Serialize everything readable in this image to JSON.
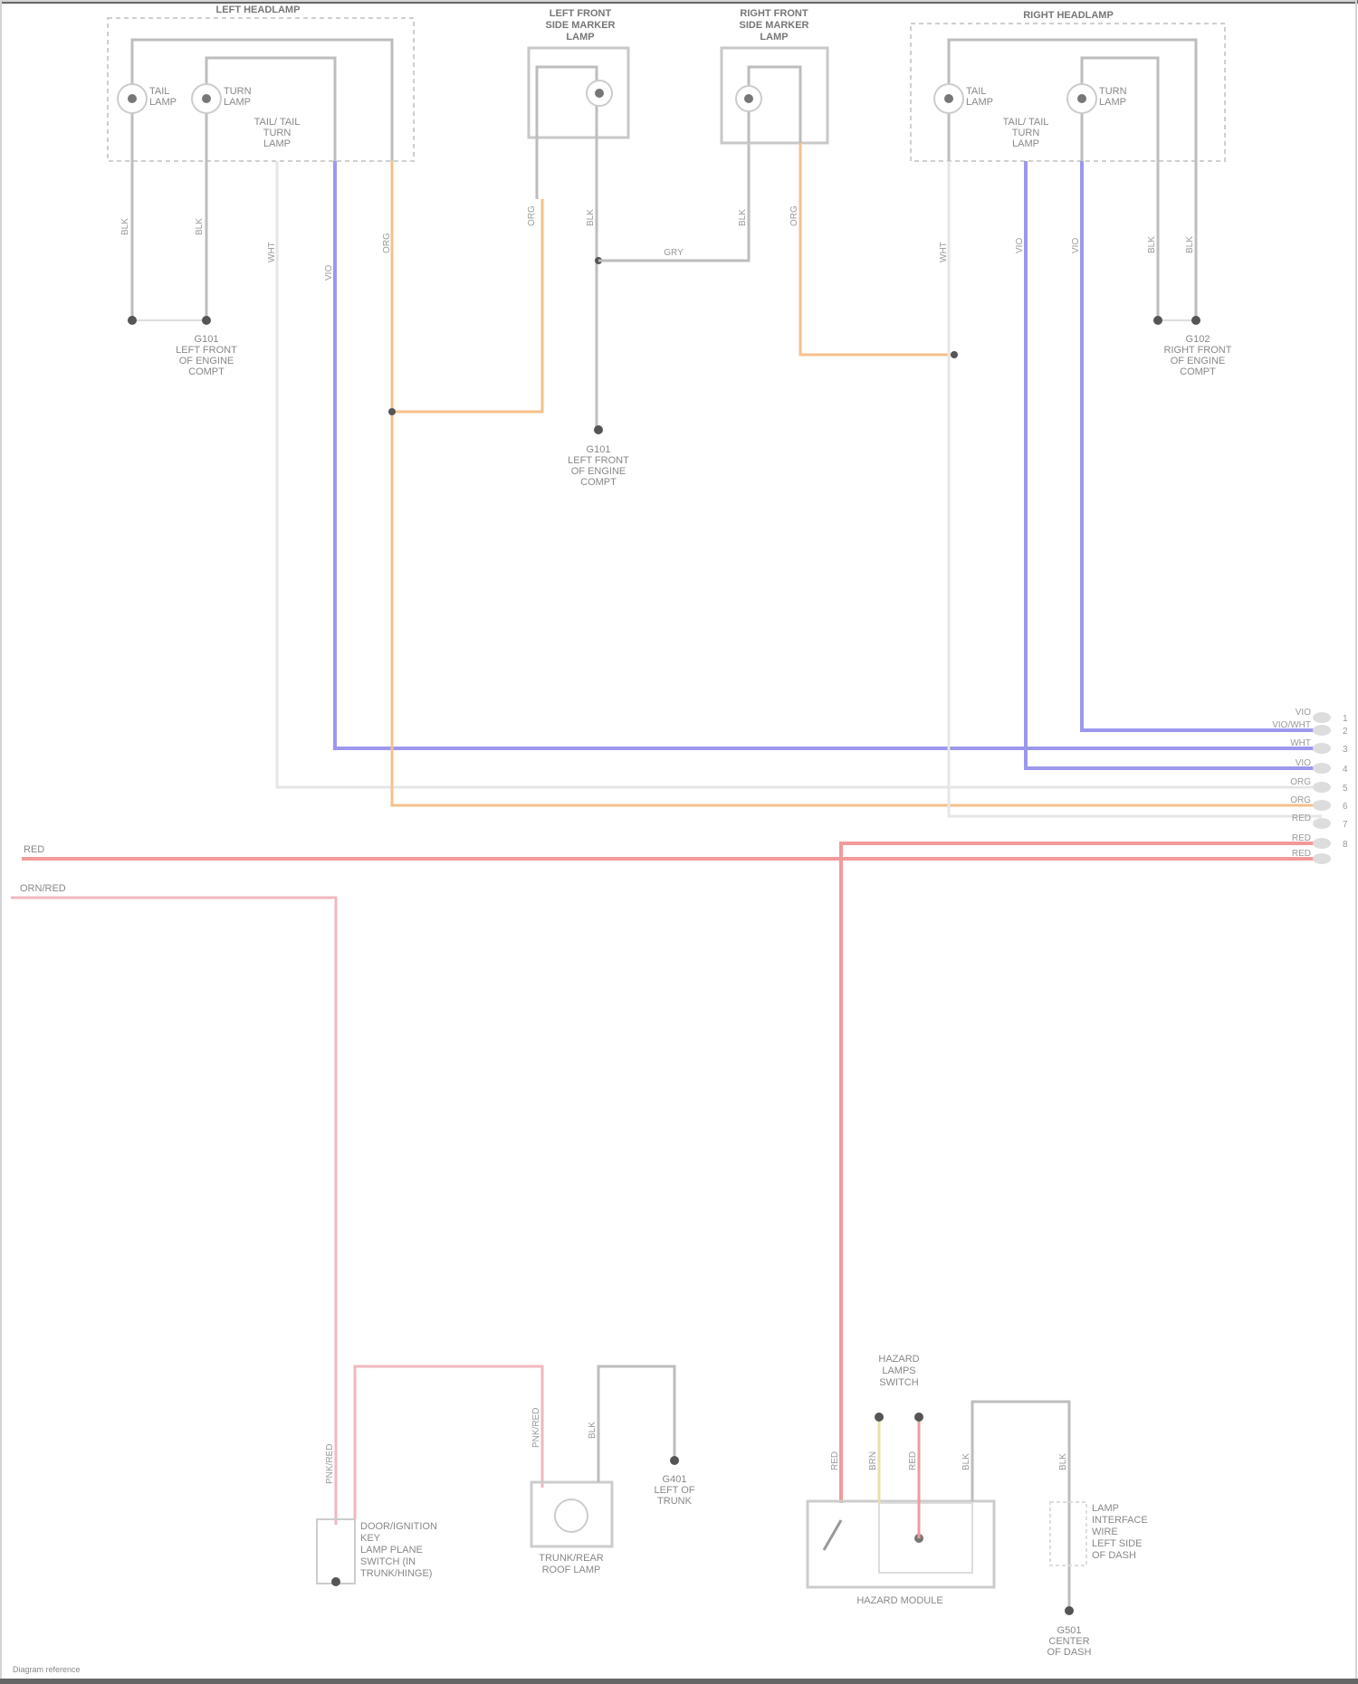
{
  "colors": {
    "purple": "#9c98ee",
    "orange": "#f5c08a",
    "red": "#f29a9a",
    "pink": "#f0b7bf",
    "grey": "#bdbdbd",
    "white": "#e6e6e6",
    "yellow": "#e9e0a8"
  },
  "left_headlamp": {
    "title": "LEFT HEADLAMP",
    "bulb1": [
      "TAIL",
      "LAMP"
    ],
    "bulb2": [
      "TURN",
      "LAMP"
    ],
    "bulb3": [
      "TAIL/ TAIL",
      "TURN",
      "LAMP"
    ]
  },
  "left_marker": {
    "title": [
      "LEFT FRONT",
      "SIDE MARKER",
      "LAMP"
    ]
  },
  "right_marker": {
    "title": [
      "RIGHT FRONT",
      "SIDE MARKER",
      "LAMP"
    ]
  },
  "right_headlamp": {
    "title": "RIGHT HEADLAMP",
    "bulb1": [
      "TAIL",
      "LAMP"
    ],
    "bulb2": [
      "TURN",
      "LAMP"
    ],
    "bulb3": [
      "TAIL/ TAIL",
      "TURN",
      "LAMP"
    ]
  },
  "grounds": {
    "left": [
      "G101",
      "LEFT FRONT",
      "OF ENGINE",
      "COMPT"
    ],
    "center": [
      "G101",
      "LEFT FRONT",
      "OF ENGINE",
      "COMPT"
    ],
    "right": [
      "G102",
      "RIGHT FRONT",
      "OF ENGINE",
      "COMPT"
    ],
    "bottom_mid": [
      "G401",
      "LEFT OF",
      "TRUNK"
    ],
    "bottom_right": [
      "G501",
      "CENTER",
      "OF DASH"
    ]
  },
  "wire_codes": {
    "gry": "GRY",
    "blk": "BLK",
    "wht": "WHT",
    "org": "ORG",
    "vio": "VIO",
    "red": "RED",
    "pnk": "PNK/RED",
    "brn": "BRN"
  },
  "connector": {
    "labels": [
      "VIO",
      "VIO/WHT",
      "WHT",
      "VIO",
      "ORG",
      "ORG",
      "RED",
      "RED",
      "RED"
    ],
    "pins": [
      "1",
      "2",
      "3",
      "4",
      "5",
      "6",
      "7",
      "8"
    ]
  },
  "inputs": {
    "red": "RED",
    "pink": "ORN/RED"
  },
  "bottom": {
    "switch_label": [
      "DOOR/IGNITION",
      "KEY",
      "LAMP PLANE",
      "SWITCH (IN",
      "TRUNK/HINGE)"
    ],
    "lamp_label": [
      "TRUNK/REAR",
      "ROOF LAMP"
    ],
    "module_top": [
      "HAZARD",
      "LAMPS",
      "SWITCH"
    ],
    "module_label": "HAZARD MODULE",
    "right_label": [
      "LAMP",
      "INTERFACE",
      "WIRE",
      "LEFT SIDE",
      "OF DASH"
    ]
  },
  "footer": "Diagram reference"
}
